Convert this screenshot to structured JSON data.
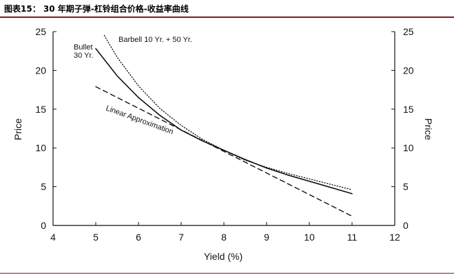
{
  "header": {
    "title": "图表15：  30 年期子弹-杠铃组合价格-收益率曲线"
  },
  "chart_data": {
    "type": "line",
    "title": "30 年期子弹-杠铃组合价格-收益率曲线",
    "xlabel": "Yield (%)",
    "ylabel": "Price",
    "ylabel_right": "Price",
    "xlim": [
      4,
      12
    ],
    "ylim": [
      0,
      25
    ],
    "xticks": [
      4,
      5,
      6,
      7,
      8,
      9,
      10,
      11,
      12
    ],
    "yticks": [
      0,
      5,
      10,
      15,
      20,
      25
    ],
    "grid": false,
    "series": [
      {
        "name": "Bullet 30 Yr.",
        "style": "solid",
        "x": [
          5.0,
          5.5,
          6.0,
          6.5,
          7.0,
          7.5,
          8.0,
          8.5,
          9.0,
          9.5,
          10.0,
          10.5,
          11.0
        ],
        "values": [
          22.8,
          19.3,
          16.5,
          14.2,
          12.3,
          10.9,
          9.7,
          8.5,
          7.4,
          6.5,
          5.7,
          4.9,
          4.1
        ]
      },
      {
        "name": "Barbell 10 Yr. + 50 Yr.",
        "style": "dotted",
        "x": [
          5.2,
          5.5,
          6.0,
          6.5,
          7.0,
          7.5,
          8.0,
          8.5,
          9.0,
          9.5,
          10.0,
          10.5,
          11.0
        ],
        "values": [
          24.5,
          21.7,
          18.0,
          15.1,
          12.9,
          11.1,
          9.7,
          8.4,
          7.5,
          6.7,
          6.0,
          5.3,
          4.6
        ]
      },
      {
        "name": "Linear Approximation",
        "style": "dashed",
        "x": [
          5.0,
          11.0
        ],
        "values": [
          17.9,
          1.2
        ]
      }
    ],
    "annotations": [
      {
        "text": "Barbell 10 Yr. + 50 Yr."
      },
      {
        "text": "Bullet"
      },
      {
        "text": "30 Yr."
      },
      {
        "text": "Linear Approximation"
      }
    ]
  }
}
